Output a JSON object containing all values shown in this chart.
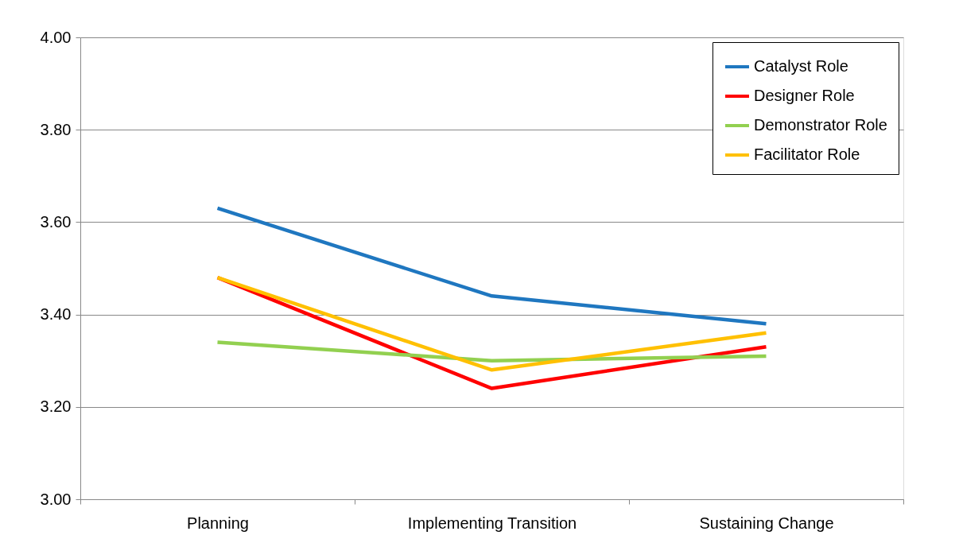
{
  "chart_data": {
    "type": "line",
    "categories": [
      "Planning",
      "Implementing Transition",
      "Sustaining Change"
    ],
    "series": [
      {
        "name": "Catalyst Role",
        "color": "#1f77c0",
        "values": [
          3.63,
          3.44,
          3.38
        ]
      },
      {
        "name": "Designer Role",
        "color": "#ff0000",
        "values": [
          3.48,
          3.24,
          3.33
        ]
      },
      {
        "name": "Demonstrator Role",
        "color": "#92d050",
        "values": [
          3.34,
          3.3,
          3.31
        ]
      },
      {
        "name": "Facilitator Role",
        "color": "#ffc000",
        "values": [
          3.48,
          3.28,
          3.36
        ]
      }
    ],
    "ylim": [
      3.0,
      4.0
    ],
    "yticks": [
      {
        "value": 3.0,
        "label": "3.00"
      },
      {
        "value": 3.2,
        "label": "3.20"
      },
      {
        "value": 3.4,
        "label": "3.40"
      },
      {
        "value": 3.6,
        "label": "3.60"
      },
      {
        "value": 3.8,
        "label": "3.80"
      },
      {
        "value": 4.0,
        "label": "4.00"
      }
    ],
    "grid": "y",
    "legend": "top right",
    "marker": "none",
    "line_style": "solid"
  }
}
